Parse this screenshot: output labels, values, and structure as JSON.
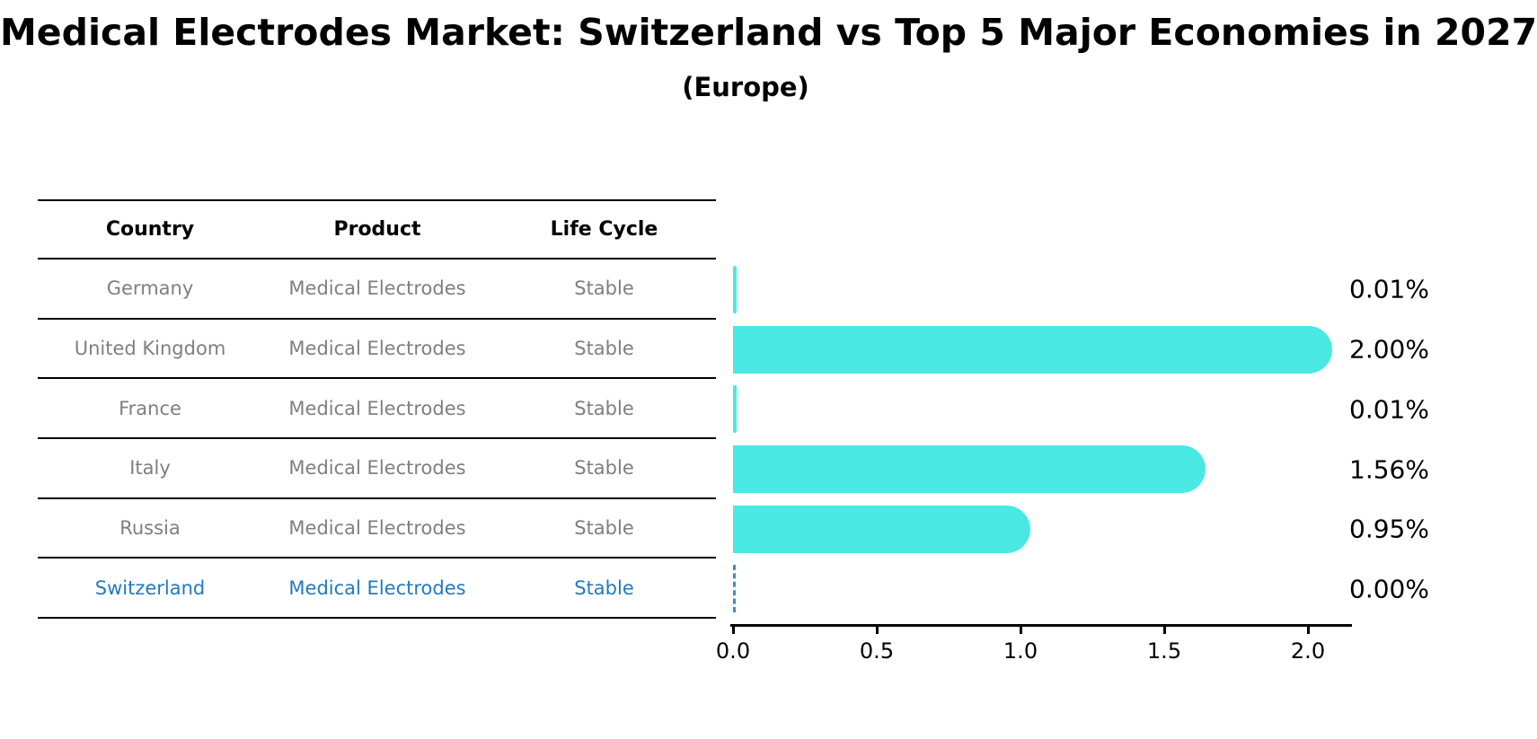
{
  "title": "Medical Electrodes Market: Switzerland vs Top 5 Major Economies in 2027",
  "subtitle": "(Europe)",
  "table": {
    "headers": [
      "Country",
      "Product",
      "Life Cycle"
    ],
    "rows": [
      {
        "country": "Germany",
        "product": "Medical Electrodes",
        "life_cycle": "Stable",
        "highlight": false
      },
      {
        "country": "United Kingdom",
        "product": "Medical Electrodes",
        "life_cycle": "Stable",
        "highlight": false
      },
      {
        "country": "France",
        "product": "Medical Electrodes",
        "life_cycle": "Stable",
        "highlight": false
      },
      {
        "country": "Italy",
        "product": "Medical Electrodes",
        "life_cycle": "Stable",
        "highlight": false
      },
      {
        "country": "Russia",
        "product": "Medical Electrodes",
        "life_cycle": "Stable",
        "highlight": false
      },
      {
        "country": "Switzerland",
        "product": "Medical Electrodes",
        "life_cycle": "Stable",
        "highlight": true
      }
    ]
  },
  "chart_data": {
    "type": "bar",
    "orientation": "horizontal",
    "title": "Medical Electrodes Market: Switzerland vs Top 5 Major Economies in 2027 (Europe)",
    "categories": [
      "Germany",
      "United Kingdom",
      "France",
      "Italy",
      "Russia",
      "Switzerland"
    ],
    "values": [
      0.01,
      2.0,
      0.01,
      1.56,
      0.95,
      0.0
    ],
    "value_labels": [
      "0.01%",
      "2.00%",
      "0.01%",
      "1.56%",
      "0.95%",
      "0.00%"
    ],
    "x_ticks": [
      0.0,
      0.5,
      1.0,
      1.5,
      2.0
    ],
    "x_tick_labels": [
      "0.0",
      "0.5",
      "1.0",
      "1.5",
      "2.0"
    ],
    "xlim": [
      0,
      2.15
    ],
    "grid": false,
    "legend": "none",
    "bar_color": "#4ae8e3",
    "highlight_color": "#3d8ec4"
  },
  "colors": {
    "bar": "#4ae8e3",
    "highlight_text": "#2479be",
    "row_text": "#7f7f7f",
    "header_text": "#000000",
    "background": "#ffffff"
  }
}
